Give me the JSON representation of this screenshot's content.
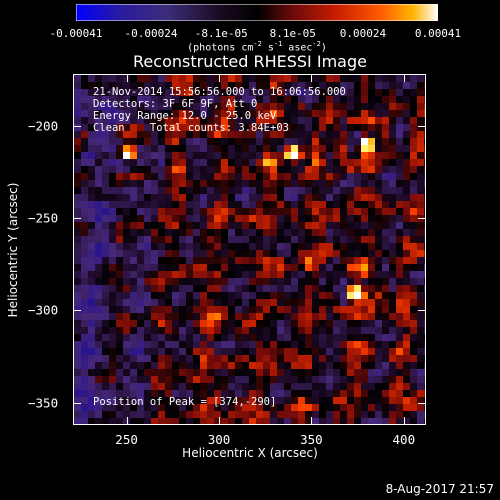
{
  "colors": {
    "background": "#000000",
    "foreground": "#ffffff",
    "colormap": [
      "#0000ff",
      "#2a1a80",
      "#3c2d7a",
      "#000000",
      "#5a0a0a",
      "#b41400",
      "#ff3c00",
      "#ffa000",
      "#ffff64",
      "#ffffff"
    ]
  },
  "colorbar": {
    "ticks": [
      "-0.00041",
      "-0.00024",
      "-8.1e-05",
      "8.1e-05",
      "0.00024",
      "0.00041"
    ],
    "tick_values": [
      -0.00041,
      -0.00024,
      -8.1e-05,
      8.1e-05,
      0.00024,
      0.00041
    ],
    "units_prefix": "(photons cm",
    "units_exp1": "-2",
    "units_mid1": " s",
    "units_exp2": "-1",
    "units_mid2": " asec",
    "units_exp3": "-2",
    "units_suffix": ")"
  },
  "title": "Reconstructed RHESSI Image",
  "info": {
    "line1": "21-Nov-2014 15:56:56.000 to 16:06:56.000",
    "line2": "Detectors: 3F 6F 9F, Att 0",
    "line3": "Energy Range: 12.0 - 25.0 keV",
    "line4": "Clean    Total counts: 3.84E+03",
    "peak": "Position of Peak = [374,-290]"
  },
  "chart_data": {
    "type": "heatmap",
    "title": "Reconstructed RHESSI Image",
    "xlabel": "Heliocentric X (arcsec)",
    "ylabel": "Heliocentric Y (arcsec)",
    "xlim": [
      221,
      412
    ],
    "ylim": [
      -362,
      -172
    ],
    "x_ticks": [
      250,
      300,
      350,
      400
    ],
    "y_ticks": [
      -200,
      -250,
      -300,
      -350
    ],
    "value_range": [
      -0.00041,
      0.00041
    ],
    "peak": {
      "x": 374,
      "y": -290
    },
    "bright_sources": [
      {
        "x": 250,
        "y": -215
      },
      {
        "x": 340,
        "y": -215
      },
      {
        "x": 374,
        "y": -290
      },
      {
        "x": 380,
        "y": -210
      }
    ]
  },
  "timestamp": "8-Aug-2017 21:57"
}
